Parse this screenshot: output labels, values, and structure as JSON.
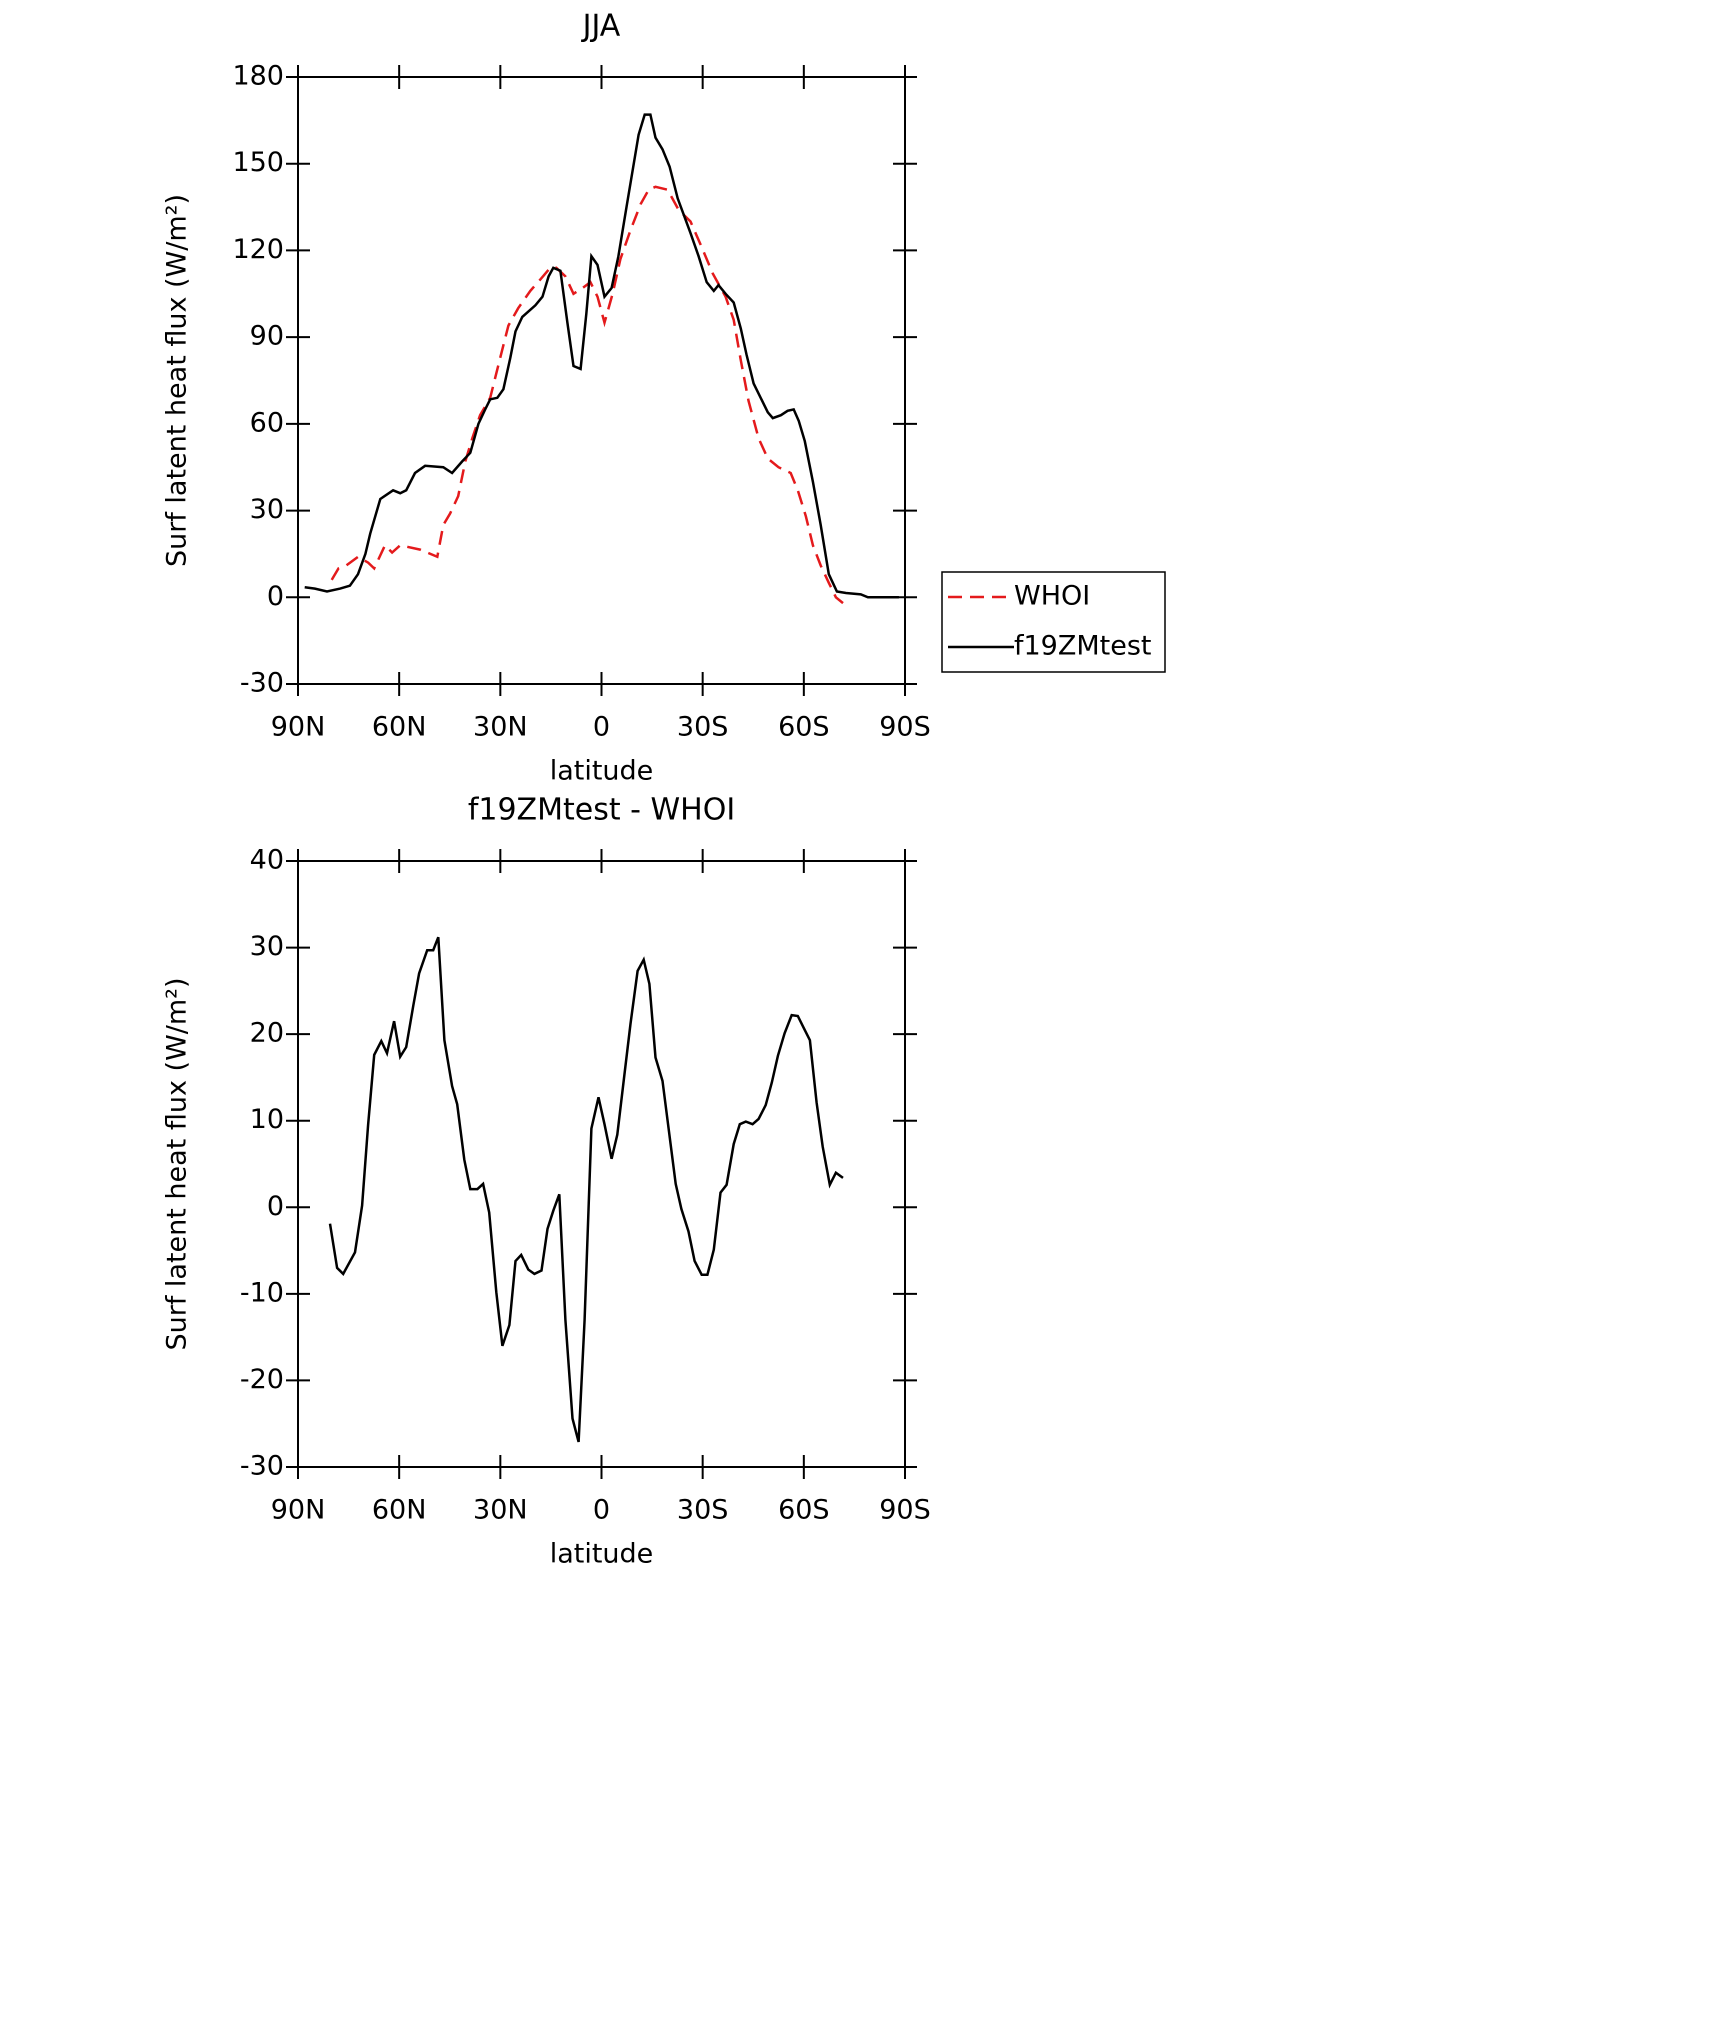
{
  "chart_data": [
    {
      "type": "line",
      "title": "JJA",
      "xlabel": "latitude",
      "ylabel": "Surf latent heat flux (W/m²)",
      "xlim": [
        90,
        -90
      ],
      "xticks": [
        {
          "value": 90,
          "label": "90N"
        },
        {
          "value": 60,
          "label": "60N"
        },
        {
          "value": 30,
          "label": "30N"
        },
        0,
        {
          "value": -30,
          "label": "30S"
        },
        {
          "value": -60,
          "label": "60S"
        },
        {
          "value": -90,
          "label": "90S"
        }
      ],
      "ylim": [
        -30,
        180
      ],
      "yticks": [
        -30,
        0,
        30,
        60,
        90,
        120,
        150,
        180
      ],
      "legend": "right",
      "series": [
        {
          "name": "WHOI",
          "color": "#e41a1c",
          "dash": true,
          "x": [
            80,
            78,
            75.7,
            72.2,
            69.2,
            67.4,
            64.2,
            62.1,
            59.7,
            53.8,
            48.7,
            46.9,
            44.9,
            42.5,
            40.4,
            38.3,
            36,
            33,
            30,
            27.6,
            24.7,
            21.1,
            18.1,
            15.2,
            13.4,
            10.7,
            8.3,
            5.6,
            3.3,
            1.2,
            -0.9,
            -3.3,
            -5.6,
            -8.6,
            -11.6,
            -14,
            -16,
            -19.6,
            -22.9,
            -26.4,
            -29.4,
            -33,
            -36.8,
            -39.2,
            -41.3,
            -43.6,
            -46.6,
            -49.3,
            -52.5,
            -56.1,
            -58.2,
            -60.6,
            -62.7,
            -65,
            -67.4,
            -69.5,
            -71.6
          ],
          "values": [
            6,
            10,
            11,
            14,
            12,
            10,
            18,
            15.5,
            18,
            16.5,
            14,
            25,
            29,
            35,
            47,
            55,
            63,
            69,
            83,
            94,
            100,
            106,
            110,
            114,
            114,
            111,
            105,
            107,
            109,
            104,
            95,
            105,
            117,
            127,
            136,
            141,
            142,
            141,
            134,
            130,
            122,
            112,
            104,
            96,
            82,
            68,
            55,
            48,
            45,
            43,
            37,
            28,
            18,
            11,
            5,
            0,
            -2
          ]
        },
        {
          "name": "f19ZMtest",
          "color": "#000000",
          "dash": false,
          "x": [
            88,
            85,
            81.4,
            77.5,
            74.6,
            72.2,
            70,
            68.6,
            65.6,
            61.8,
            59.7,
            57.9,
            55.3,
            52.3,
            46.9,
            44.3,
            41.3,
            38.9,
            36.5,
            34.5,
            33,
            30.9,
            29.1,
            27,
            25.5,
            23.5,
            19.6,
            17.5,
            15.7,
            14.3,
            12.2,
            10.1,
            8.3,
            6.2,
            4.5,
            3,
            1.2,
            -0.9,
            -3,
            -5,
            -7.4,
            -11,
            -12.8,
            -14.5,
            -16,
            -18.1,
            -20.2,
            -22.6,
            -26.4,
            -28.8,
            -31.2,
            -33.3,
            -34.7,
            -36.8,
            -39.2,
            -41.3,
            -43,
            -45.1,
            -49.3,
            -50.8,
            -53.2,
            -55.2,
            -57,
            -58.5,
            -60.3,
            -62.7,
            -65,
            -67.4,
            -69.8,
            -72.5,
            -76.9,
            -79,
            -82.9,
            -88.2
          ],
          "values": [
            3.5,
            3,
            2,
            3,
            4,
            8,
            15,
            22,
            34,
            37,
            36,
            37,
            43,
            45.5,
            45,
            43,
            47,
            50,
            60,
            65,
            68.5,
            69,
            72,
            83,
            92,
            97,
            101,
            104,
            111,
            114,
            113,
            95,
            80,
            79,
            98,
            118,
            115,
            104,
            107,
            118,
            135,
            160,
            167,
            167,
            159,
            155,
            149,
            138,
            126,
            118,
            109,
            106,
            108,
            105,
            102,
            93,
            84,
            74,
            64,
            62,
            63,
            64.5,
            65,
            61,
            54,
            40,
            25,
            8,
            2,
            1.5,
            1,
            0,
            0,
            0
          ]
        }
      ]
    },
    {
      "type": "line",
      "title": "f19ZMtest - WHOI",
      "xlabel": "latitude",
      "ylabel": "Surf latent heat flux (W/m²)",
      "xlim": [
        90,
        -90
      ],
      "xticks": [
        {
          "value": 90,
          "label": "90N"
        },
        {
          "value": 60,
          "label": "60N"
        },
        {
          "value": 30,
          "label": "30N"
        },
        0,
        {
          "value": -30,
          "label": "30S"
        },
        {
          "value": -60,
          "label": "60S"
        },
        {
          "value": -90,
          "label": "90S"
        }
      ],
      "ylim": [
        -30,
        40
      ],
      "yticks": [
        -30,
        -20,
        -10,
        0,
        10,
        20,
        30,
        40
      ],
      "series": [
        {
          "color": "#000000",
          "dash": false,
          "x": [
            80.5,
            78.4,
            76.6,
            73.1,
            71,
            69.2,
            67.4,
            65.3,
            63.6,
            61.5,
            59.7,
            57.9,
            55.8,
            54.1,
            51.7,
            49.9,
            48.4,
            46.6,
            44.3,
            42.8,
            40.7,
            38.9,
            36.8,
            35.1,
            33.3,
            31.2,
            29.4,
            27.3,
            25.5,
            23.8,
            21.7,
            19.9,
            17.8,
            16,
            14.3,
            12.5,
            10.7,
            8.6,
            6.8,
            5,
            3,
            0.9,
            -0.9,
            -3,
            -4.7,
            -6.8,
            -8.6,
            -10.7,
            -12.5,
            -14.2,
            -16,
            -18.1,
            -19.9,
            -22,
            -23.7,
            -25.8,
            -27.6,
            -29.7,
            -31.4,
            -33.3,
            -35.3,
            -37.1,
            -39.2,
            -41,
            -42.8,
            -44.8,
            -46.6,
            -48.7,
            -50.5,
            -52.3,
            -54.3,
            -56.4,
            -58.2,
            -60,
            -61.8,
            -63.8,
            -65.6,
            -67.7,
            -69.5,
            -71.6
          ],
          "values": [
            -1.9,
            -7,
            -7.7,
            -5.2,
            0.2,
            9.5,
            17.6,
            19.2,
            17.8,
            21.5,
            17.4,
            18.5,
            23.3,
            27,
            29.7,
            29.7,
            31.2,
            19.3,
            14,
            11.9,
            5.5,
            2.1,
            2.1,
            2.7,
            -0.6,
            -9.8,
            -16,
            -13.6,
            -6.2,
            -5.5,
            -7.2,
            -7.7,
            -7.3,
            -2.5,
            -0.4,
            1.5,
            -13,
            -24.4,
            -27.1,
            -13,
            9.1,
            12.7,
            9.6,
            5.6,
            8.4,
            15.3,
            21.2,
            27.3,
            28.6,
            25.8,
            17.3,
            14.6,
            9.1,
            2.7,
            -0.2,
            -2.8,
            -6.2,
            -7.8,
            -7.8,
            -4.9,
            1.7,
            2.6,
            7.3,
            9.6,
            9.9,
            9.6,
            10.2,
            11.8,
            14.4,
            17.5,
            20.1,
            22.2,
            22.1,
            20.7,
            19.3,
            12.1,
            7,
            2.6,
            4,
            3.4
          ]
        }
      ]
    }
  ]
}
